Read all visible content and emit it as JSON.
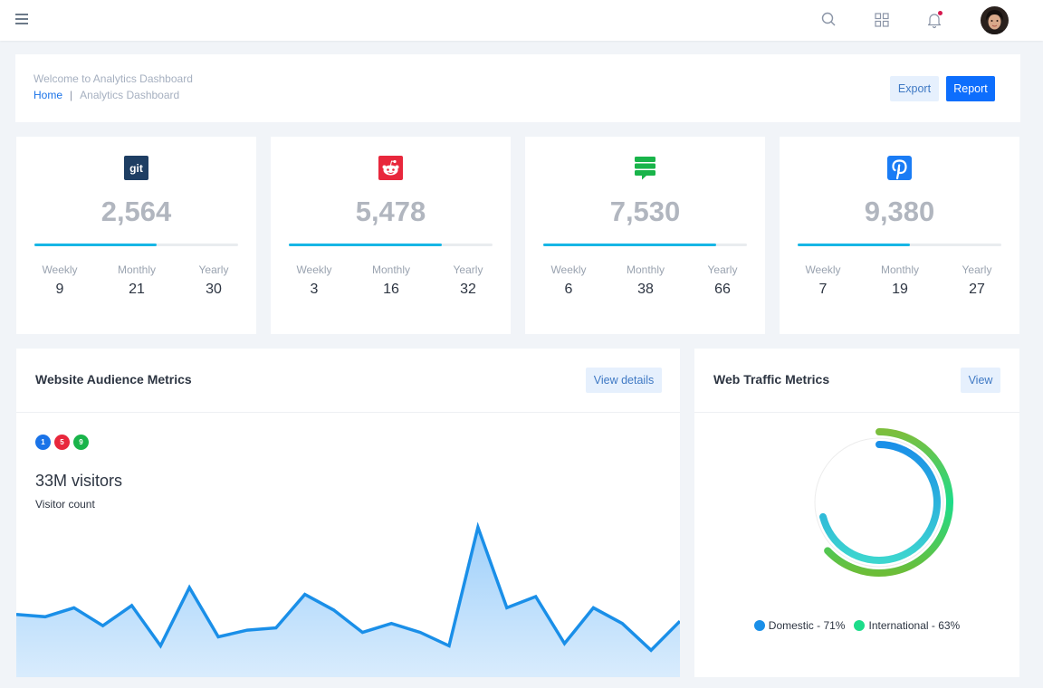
{
  "header": {
    "welcome": "Welcome to Analytics Dashboard",
    "breadcrumb": {
      "home": "Home",
      "separator": "|",
      "current": "Analytics Dashboard"
    },
    "export_label": "Export",
    "report_label": "Report"
  },
  "topbar": {
    "icons": [
      "menu-icon",
      "search-icon",
      "apps-grid-icon",
      "bell-icon",
      "avatar"
    ],
    "has_notification": true
  },
  "stats": [
    {
      "brand": "git",
      "logo_text": "git",
      "color": "#1e3e63",
      "total": "2,564",
      "progress": 0.6,
      "weekly_label": "Weekly",
      "weekly": "9",
      "monthly_label": "Monthly",
      "monthly": "21",
      "yearly_label": "Yearly",
      "yearly": "30"
    },
    {
      "brand": "reddit",
      "color": "#e8273c",
      "total": "5,478",
      "progress": 0.75,
      "weekly_label": "Weekly",
      "weekly": "3",
      "monthly_label": "Monthly",
      "monthly": "16",
      "yearly_label": "Yearly",
      "yearly": "32"
    },
    {
      "brand": "stack-exchange",
      "color": "#19b44a",
      "total": "7,530",
      "progress": 0.85,
      "weekly_label": "Weekly",
      "weekly": "6",
      "monthly_label": "Monthly",
      "monthly": "38",
      "yearly_label": "Yearly",
      "yearly": "66"
    },
    {
      "brand": "pinterest",
      "color": "#1a7cf5",
      "total": "9,380",
      "progress": 0.55,
      "weekly_label": "Weekly",
      "weekly": "7",
      "monthly_label": "Monthly",
      "monthly": "19",
      "yearly_label": "Yearly",
      "yearly": "27"
    }
  ],
  "audience": {
    "title": "Website Audience Metrics",
    "button_label": "View details",
    "badges": [
      {
        "text": "1",
        "color": "#1a73e8"
      },
      {
        "text": "5",
        "color": "#e8273c"
      },
      {
        "text": "9",
        "color": "#19b44a"
      }
    ],
    "visitors": "33M visitors",
    "visitor_label": "Visitor count"
  },
  "traffic": {
    "title": "Web Traffic Metrics",
    "button_label": "View",
    "domestic_label": "Domestic - 71%",
    "international_label": "International - 63%",
    "domestic_color": "#1a8fe8",
    "international_color": "#1ddc8a"
  },
  "chart_data": [
    {
      "type": "area",
      "title": "",
      "x": [
        0,
        1,
        2,
        3,
        4,
        5,
        6,
        7,
        8,
        9,
        10,
        11,
        12,
        13,
        14,
        15,
        16,
        17,
        18,
        19,
        20,
        21,
        22,
        23
      ],
      "values": [
        13,
        12,
        16,
        8,
        17,
        -1,
        25,
        3,
        6,
        7,
        22,
        15,
        5,
        9,
        5,
        -1,
        52,
        16,
        21,
        0,
        16,
        9,
        -3,
        10
      ],
      "series": [
        {
          "values": [
            13,
            12,
            16,
            8,
            17,
            -1,
            25,
            3,
            6,
            7,
            22,
            15,
            5,
            9,
            5,
            -1,
            52,
            16,
            21,
            0,
            16,
            9,
            -3,
            10
          ],
          "color": "#1a8fe8"
        }
      ],
      "ylim": [
        -15,
        55
      ],
      "grid": false,
      "legend": "none"
    },
    {
      "type": "radialBar",
      "title": "",
      "categories": [
        "Domestic",
        "International"
      ],
      "values": [
        71,
        63
      ],
      "colors": [
        "#1a8fe8",
        "#1ddc8a"
      ],
      "legend": "bottom"
    }
  ]
}
